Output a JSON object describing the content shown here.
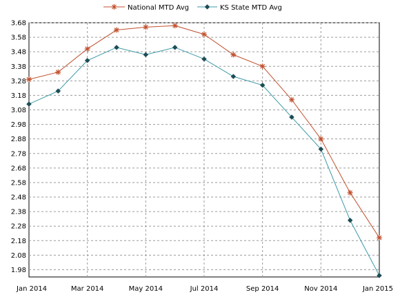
{
  "chart_data": {
    "type": "line",
    "x": [
      "Jan 2014",
      "Feb 2014",
      "Mar 2014",
      "Apr 2014",
      "May 2014",
      "Jun 2014",
      "Jul 2014",
      "Aug 2014",
      "Sep 2014",
      "Oct 2014",
      "Nov 2014",
      "Dec 2014",
      "Jan 2015"
    ],
    "x_tick_labels": [
      "Jan 2014",
      "Mar 2014",
      "May 2014",
      "Jul 2014",
      "Sep 2014",
      "Nov 2014",
      "Jan 2015"
    ],
    "y_tick_labels": [
      "1.98",
      "2.08",
      "2.18",
      "2.28",
      "2.38",
      "2.48",
      "2.58",
      "2.68",
      "2.78",
      "2.88",
      "2.98",
      "3.08",
      "3.18",
      "3.28",
      "3.38",
      "3.48",
      "3.58",
      "3.68"
    ],
    "ylim": [
      1.93,
      3.68
    ],
    "grid": true,
    "legend_position": "top",
    "series": [
      {
        "name": "National MTD Avg",
        "color": "#c0502e",
        "marker": "asterisk",
        "values": [
          3.29,
          3.34,
          3.5,
          3.63,
          3.65,
          3.66,
          3.6,
          3.46,
          3.38,
          3.15,
          2.88,
          2.51,
          2.2
        ]
      },
      {
        "name": "KS State MTD Avg",
        "color": "#3b9aa6",
        "marker": "diamond",
        "values": [
          3.12,
          3.21,
          3.42,
          3.51,
          3.46,
          3.51,
          3.43,
          3.31,
          3.25,
          3.03,
          2.81,
          2.32,
          1.94
        ]
      }
    ]
  }
}
